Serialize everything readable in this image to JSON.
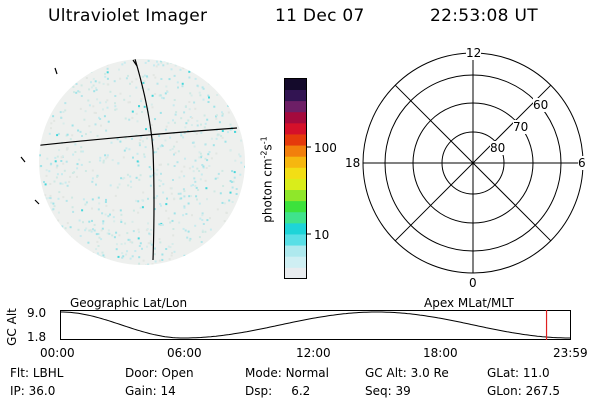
{
  "header": {
    "instrument": "Ultraviolet Imager",
    "date": "11 Dec 07",
    "time": "22:53:08 UT"
  },
  "colorbar": {
    "unit_text": "photon cm",
    "unit_exp1": "-2",
    "unit_s": "s",
    "unit_exp2": "-1",
    "ticks": [
      {
        "label": "100",
        "value": 100
      },
      {
        "label": "10",
        "value": 10
      }
    ],
    "colors": [
      "#e8ecef",
      "#cfeff3",
      "#aee9ee",
      "#59dfe6",
      "#1ed4d8",
      "#3fe38c",
      "#3ce23c",
      "#8fe72a",
      "#d9ed1b",
      "#f2de15",
      "#f6b70f",
      "#f27f0c",
      "#e53a0c",
      "#d5102a",
      "#a50a3d",
      "#6d1f66",
      "#321452",
      "#140a2b"
    ]
  },
  "polar": {
    "labels": {
      "top": "12",
      "bottom": "0",
      "left": "18",
      "right": "6"
    },
    "rings": [
      "60",
      "70",
      "80"
    ]
  },
  "orbit_panel": {
    "left_title": "Geographic Lat/Lon",
    "right_title": "Apex MLat/MLT",
    "yaxis_label": "GC Alt",
    "y_ticks": [
      "9.0",
      "1.8"
    ],
    "x_ticks": [
      "00:00",
      "06:00",
      "12:00",
      "18:00",
      "23:59"
    ],
    "current_time_fraction": 0.954,
    "current_marker_color": "#e02020"
  },
  "info": {
    "row1": [
      {
        "key": "Flt:",
        "value": "LBHL"
      },
      {
        "key": "Door:",
        "value": "Open"
      },
      {
        "key": "Mode:",
        "value": "Normal"
      },
      {
        "key": "GC Alt:",
        "value": "3.0 Re"
      },
      {
        "key": "GLat:",
        "value": "11.0"
      }
    ],
    "row2": [
      {
        "key": "IP:",
        "value": "36.0"
      },
      {
        "key": "Gain:",
        "value": "14"
      },
      {
        "key": "Dsp:",
        "value": "6.2"
      },
      {
        "key": "Seq:",
        "value": "39"
      },
      {
        "key": "GLon:",
        "value": "267.5"
      }
    ]
  }
}
